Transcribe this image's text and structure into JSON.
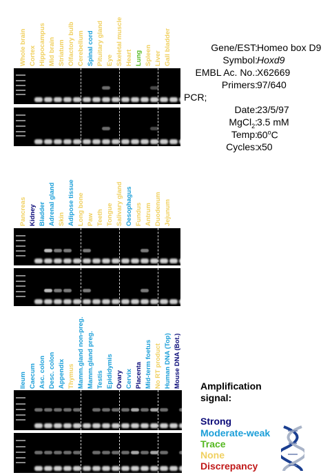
{
  "colors": {
    "strong": "#0a0a78",
    "moderate": "#1a9ed8",
    "trace": "#55b820",
    "none": "#f0d060",
    "discrepancy": "#c01818"
  },
  "panel1": {
    "lanes": [
      {
        "label": "Whole brain",
        "level": "none"
      },
      {
        "label": "Cortex",
        "level": "none"
      },
      {
        "label": "Hippocampus",
        "level": "none"
      },
      {
        "label": "Mid brain",
        "level": "none"
      },
      {
        "label": "Striatum",
        "level": "none"
      },
      {
        "label": "Olfactory bulb",
        "level": "none"
      },
      {
        "label": "Cerebellum",
        "level": "none"
      },
      {
        "label": "Spinal cord",
        "level": "moderate"
      },
      {
        "label": "Pituitary gland",
        "level": "none"
      },
      {
        "label": "Eye",
        "level": "none"
      },
      {
        "label": "Skeletal muscle",
        "level": "none"
      },
      {
        "label": "Heart",
        "level": "none"
      },
      {
        "label": "Lung",
        "level": "trace"
      },
      {
        "label": "Spleen",
        "level": "none"
      },
      {
        "label": "Liver",
        "level": "none"
      },
      {
        "label": "Gall bladder",
        "level": "none"
      }
    ]
  },
  "panel2": {
    "lanes": [
      {
        "label": "Pancreas",
        "level": "none"
      },
      {
        "label": "Kidney",
        "level": "strong"
      },
      {
        "label": "Bladder",
        "level": "moderate"
      },
      {
        "label": "Adrenal gland",
        "level": "moderate"
      },
      {
        "label": "Skin",
        "level": "none"
      },
      {
        "label": "Adipose tissue",
        "level": "moderate"
      },
      {
        "label": "Long bone",
        "level": "none"
      },
      {
        "label": "Paw",
        "level": "none"
      },
      {
        "label": "Teeth",
        "level": "none"
      },
      {
        "label": "Tongue",
        "level": "none"
      },
      {
        "label": "Salivary gland",
        "level": "none"
      },
      {
        "label": "Oesophagus",
        "level": "moderate"
      },
      {
        "label": "Fundus",
        "level": "none"
      },
      {
        "label": "Antrum",
        "level": "none"
      },
      {
        "label": "Duodenum",
        "level": "none"
      },
      {
        "label": "Jejunum",
        "level": "none"
      }
    ]
  },
  "panel3": {
    "lanes": [
      {
        "label": "Ileum",
        "level": "moderate"
      },
      {
        "label": "Caecum",
        "level": "moderate"
      },
      {
        "label": "Asc. colon",
        "level": "moderate"
      },
      {
        "label": "Desc. colon",
        "level": "moderate"
      },
      {
        "label": "Appendix",
        "level": "moderate"
      },
      {
        "label": "Thymus",
        "level": "none"
      },
      {
        "label": "Mamm.gland non-preg.",
        "level": "moderate"
      },
      {
        "label": "Mamm.gland preg.",
        "level": "moderate"
      },
      {
        "label": "Testis",
        "level": "moderate"
      },
      {
        "label": "Epididymis",
        "level": "moderate"
      },
      {
        "label": "Ovary",
        "level": "strong"
      },
      {
        "label": "Cervix",
        "level": "moderate"
      },
      {
        "label": "Placenta",
        "level": "strong"
      },
      {
        "label": "Mid-term foetus",
        "level": "moderate"
      },
      {
        "label": "No RT product",
        "level": "none"
      },
      {
        "label": "Human DNA (Top)",
        "level": "moderate"
      },
      {
        "label": "Mouse DNA (Bot.)",
        "level": "strong"
      }
    ]
  },
  "info": {
    "gene_label": "Gene/EST:",
    "gene_value": "Homeo box D9",
    "symbol_label": "Symbol:",
    "symbol_value": "Hoxd9",
    "embl_label": "EMBL Ac. No.:",
    "embl_value": "X62669",
    "primers_label": "Primers:",
    "primers_value": "97/640",
    "pcr_label": "PCR;",
    "date_label": "Date:",
    "date_value": "23/5/97",
    "mgcl_label_main": "MgCl",
    "mgcl_label_sub": "2",
    "mgcl_label_colon": ":",
    "mgcl_value": "3.5 mM",
    "temp_label": "Temp:",
    "temp_value_num": "60",
    "temp_value_sup": "o",
    "temp_value_unit": "C",
    "cycles_label": "Cycles:",
    "cycles_value": "x50"
  },
  "legend": {
    "title_line1": "Amplification",
    "title_line2": "signal:",
    "strong": "Strong",
    "moderate": "Moderate-weak",
    "trace": "Trace",
    "none": "None",
    "discrepancy": "Discrepancy"
  },
  "helix_icon": "dna-helix-icon"
}
